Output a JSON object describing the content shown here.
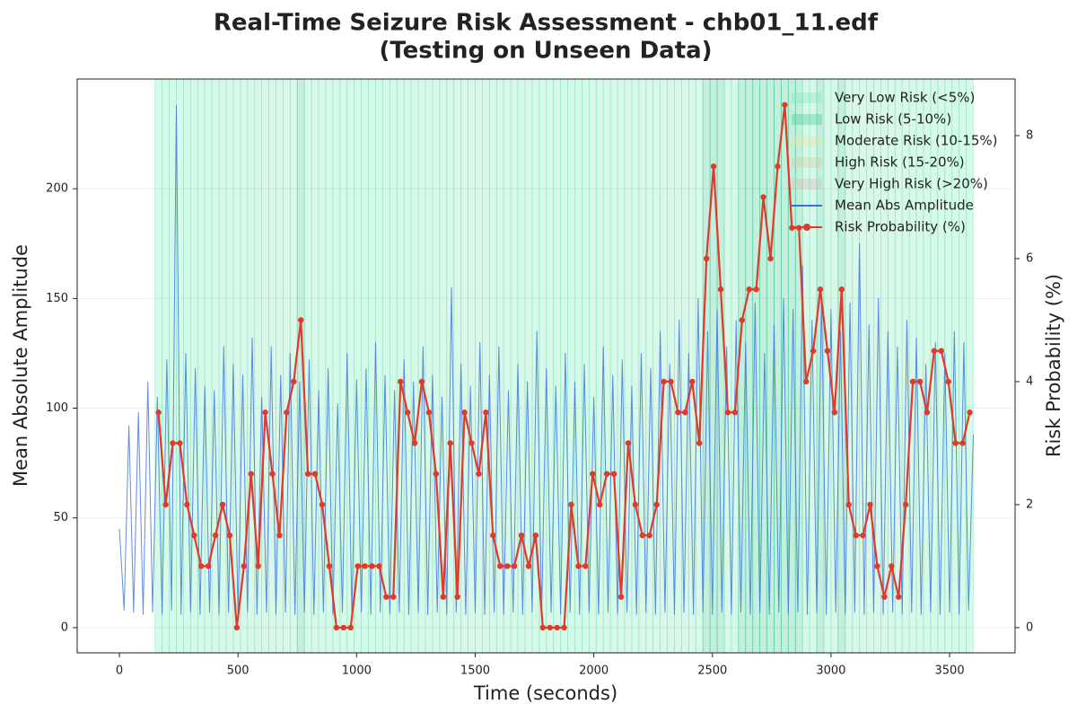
{
  "chart_data": {
    "type": "line",
    "title": [
      "Real-Time Seizure Risk Assessment - chb01_11.edf",
      "(Testing on Unseen Data)"
    ],
    "xlabel": "Time (seconds)",
    "ylabel": "Mean Absolute Amplitude",
    "y2label": "Risk Probability (%)",
    "xlim": [
      -178,
      3776
    ],
    "ylim": [
      -11.5,
      250
    ],
    "y2lim": [
      -0.41,
      8.92
    ],
    "xticks": [
      0,
      500,
      1000,
      1500,
      2000,
      2500,
      3000,
      3500
    ],
    "yticks": [
      0,
      50,
      100,
      150,
      200
    ],
    "y2ticks": [
      0,
      2,
      4,
      6,
      8
    ],
    "grid": true,
    "legend": "upper right",
    "risk_levels": [
      {
        "name": "Very Low Risk (<5%)",
        "color": "#7de8b8",
        "max": 5
      },
      {
        "name": "Low Risk (5-10%)",
        "color": "#3cc890",
        "max": 10
      },
      {
        "name": "Moderate Risk (10-15%)",
        "color": "#e6e6a0",
        "max": 15
      },
      {
        "name": "High Risk (15-20%)",
        "color": "#d6c8a0",
        "max": 20
      },
      {
        "name": "Very High Risk (>20%)",
        "color": "#d8b8b0"
      }
    ],
    "series": [
      {
        "name": "Mean Abs Amplitude",
        "color": "#3a6fe0",
        "x": [
          0,
          20,
          40,
          60,
          80,
          100,
          120,
          140,
          160,
          180,
          200,
          220,
          240,
          260,
          280,
          300,
          320,
          340,
          360,
          380,
          400,
          420,
          440,
          460,
          480,
          500,
          520,
          540,
          560,
          580,
          600,
          620,
          640,
          660,
          680,
          700,
          720,
          740,
          760,
          780,
          800,
          820,
          840,
          860,
          880,
          900,
          920,
          940,
          960,
          980,
          1000,
          1020,
          1040,
          1060,
          1080,
          1100,
          1120,
          1140,
          1160,
          1180,
          1200,
          1220,
          1240,
          1260,
          1280,
          1300,
          1320,
          1340,
          1360,
          1380,
          1400,
          1420,
          1440,
          1460,
          1480,
          1500,
          1520,
          1540,
          1560,
          1580,
          1600,
          1620,
          1640,
          1660,
          1680,
          1700,
          1720,
          1740,
          1760,
          1780,
          1800,
          1820,
          1840,
          1860,
          1880,
          1900,
          1920,
          1940,
          1960,
          1980,
          2000,
          2020,
          2040,
          2060,
          2080,
          2100,
          2120,
          2140,
          2160,
          2180,
          2200,
          2220,
          2240,
          2260,
          2280,
          2300,
          2320,
          2340,
          2360,
          2380,
          2400,
          2420,
          2440,
          2460,
          2480,
          2500,
          2520,
          2540,
          2560,
          2580,
          2600,
          2620,
          2640,
          2660,
          2680,
          2700,
          2720,
          2740,
          2760,
          2780,
          2800,
          2820,
          2840,
          2860,
          2880,
          2900,
          2920,
          2940,
          2960,
          2980,
          3000,
          3020,
          3040,
          3060,
          3080,
          3100,
          3120,
          3140,
          3160,
          3180,
          3200,
          3220,
          3240,
          3260,
          3280,
          3300,
          3320,
          3340,
          3360,
          3380,
          3400,
          3420,
          3440,
          3460,
          3480,
          3500,
          3520,
          3540,
          3560,
          3580,
          3600
        ],
        "values": [
          45,
          8,
          92,
          7,
          98,
          6,
          112,
          7,
          105,
          6,
          122,
          8,
          238,
          6,
          125,
          7,
          118,
          6,
          110,
          7,
          108,
          6,
          128,
          7,
          120,
          6,
          115,
          7,
          132,
          6,
          105,
          7,
          128,
          6,
          115,
          7,
          125,
          6,
          112,
          7,
          122,
          6,
          108,
          7,
          118,
          6,
          102,
          7,
          125,
          6,
          113,
          7,
          118,
          6,
          130,
          7,
          115,
          6,
          108,
          7,
          122,
          6,
          112,
          7,
          128,
          6,
          115,
          7,
          105,
          6,
          155,
          7,
          120,
          6,
          110,
          7,
          130,
          6,
          115,
          7,
          128,
          6,
          108,
          7,
          120,
          6,
          112,
          7,
          135,
          6,
          118,
          7,
          110,
          6,
          125,
          7,
          112,
          6,
          120,
          7,
          105,
          6,
          128,
          7,
          115,
          6,
          122,
          7,
          110,
          6,
          125,
          7,
          118,
          6,
          135,
          7,
          120,
          6,
          140,
          7,
          125,
          6,
          150,
          7,
          135,
          6,
          145,
          7,
          128,
          6,
          140,
          7,
          130,
          6,
          148,
          7,
          125,
          6,
          138,
          7,
          150,
          6,
          145,
          7,
          165,
          6,
          140,
          7,
          152,
          6,
          145,
          7,
          135,
          6,
          148,
          7,
          175,
          6,
          138,
          7,
          150,
          6,
          135,
          7,
          128,
          6,
          140,
          7,
          132,
          6,
          120,
          7,
          130,
          6,
          125,
          7,
          135,
          6,
          130,
          8,
          88
        ]
      },
      {
        "name": "Risk Probability (%)",
        "color": "#e03a2a",
        "axis": "y2",
        "x": [
          165,
          195,
          225,
          255,
          285,
          315,
          345,
          375,
          405,
          435,
          465,
          495,
          525,
          555,
          585,
          615,
          645,
          675,
          705,
          735,
          765,
          795,
          825,
          855,
          885,
          915,
          945,
          975,
          1005,
          1035,
          1065,
          1095,
          1125,
          1155,
          1185,
          1215,
          1245,
          1275,
          1305,
          1335,
          1365,
          1395,
          1425,
          1455,
          1485,
          1515,
          1545,
          1575,
          1605,
          1635,
          1665,
          1695,
          1725,
          1755,
          1785,
          1815,
          1845,
          1875,
          1905,
          1935,
          1965,
          1995,
          2025,
          2055,
          2085,
          2115,
          2145,
          2175,
          2205,
          2235,
          2265,
          2295,
          2325,
          2355,
          2385,
          2415,
          2445,
          2475,
          2505,
          2535,
          2565,
          2595,
          2625,
          2655,
          2685,
          2715,
          2745,
          2775,
          2805,
          2835,
          2865,
          2895,
          2925,
          2955,
          2985,
          3015,
          3045,
          3075,
          3105,
          3135,
          3165,
          3195,
          3225,
          3255,
          3285,
          3315,
          3345,
          3375,
          3405,
          3435,
          3465,
          3495,
          3525,
          3555,
          3585
        ],
        "values": [
          3.5,
          2,
          3,
          3,
          2,
          1.5,
          1,
          1,
          1.5,
          2,
          1.5,
          0,
          1,
          2.5,
          1,
          3.5,
          2.5,
          1.5,
          3.5,
          4,
          5,
          2.5,
          2.5,
          2,
          1,
          0,
          0,
          0,
          1,
          1,
          1,
          1,
          0.5,
          0.5,
          4,
          3.5,
          3,
          4,
          3.5,
          2.5,
          0.5,
          3,
          0.5,
          3.5,
          3,
          2.5,
          3.5,
          1.5,
          1,
          1,
          1,
          1.5,
          1,
          1.5,
          0,
          0,
          0,
          0,
          2,
          1,
          1,
          2.5,
          2,
          2.5,
          2.5,
          0.5,
          3,
          2,
          1.5,
          1.5,
          2,
          4,
          4,
          3.5,
          3.5,
          4,
          3,
          6,
          7.5,
          5.5,
          3.5,
          3.5,
          5,
          5.5,
          5.5,
          7,
          6,
          7.5,
          8.5,
          6.5,
          6.5,
          4,
          4.5,
          5.5,
          4.5,
          3.5,
          5.5,
          2,
          1.5,
          1.5,
          2,
          1,
          0.5,
          1,
          0.5,
          2,
          4,
          4,
          3.5,
          4.5,
          4.5,
          4,
          3,
          3,
          3.5
        ]
      }
    ]
  }
}
